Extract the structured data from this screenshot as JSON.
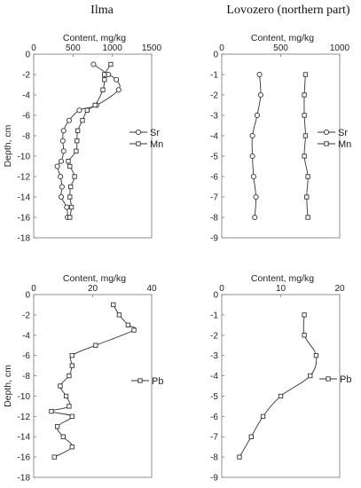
{
  "column_titles": [
    "Ilma",
    "Lovozero (northern part)"
  ],
  "chart_data": [
    {
      "type": "line",
      "panel": "Ilma",
      "xlabel": "Content, mg/kg",
      "ylabel": "Depth, cm",
      "xlim": [
        0,
        1500
      ],
      "xticks": [
        0,
        500,
        1000,
        1500
      ],
      "ylim": [
        -18,
        0
      ],
      "yticks": [
        0,
        -2,
        -4,
        -6,
        -8,
        -10,
        -12,
        -14,
        -16,
        -18
      ],
      "legend_position": "right",
      "series": [
        {
          "name": "Sr",
          "marker": "circle",
          "x": [
            760,
            950,
            1050,
            1080,
            800,
            580,
            450,
            380,
            370,
            380,
            350,
            300,
            340,
            360,
            350,
            420,
            430
          ],
          "y": [
            -1,
            -2,
            -2.5,
            -3.5,
            -5,
            -5.5,
            -6.5,
            -7.5,
            -8.5,
            -9.5,
            -10.5,
            -11,
            -12,
            -13,
            -14,
            -15,
            -16
          ]
        },
        {
          "name": "Mn",
          "marker": "square",
          "x": [
            980,
            900,
            900,
            880,
            780,
            680,
            620,
            560,
            550,
            540,
            440,
            460,
            520,
            470,
            460,
            480,
            460
          ],
          "y": [
            -1,
            -2,
            -2.5,
            -3.5,
            -5,
            -5.5,
            -6.5,
            -7.5,
            -8.5,
            -9.5,
            -10.5,
            -11,
            -12,
            -13,
            -14,
            -15,
            -16
          ]
        }
      ]
    },
    {
      "type": "line",
      "panel": "Lovozero (northern part)",
      "xlabel": "Content, mg/kg",
      "ylabel": "",
      "xlim": [
        0,
        1000
      ],
      "xticks": [
        0,
        500,
        1000
      ],
      "ylim": [
        -9,
        0
      ],
      "yticks": [
        0,
        -1,
        -2,
        -3,
        -4,
        -5,
        -6,
        -7,
        -8,
        -9
      ],
      "legend_position": "right",
      "series": [
        {
          "name": "Sr",
          "marker": "circle",
          "x": [
            320,
            330,
            300,
            260,
            260,
            270,
            290,
            280
          ],
          "y": [
            -1,
            -2,
            -3,
            -4,
            -5,
            -6,
            -7,
            -8
          ]
        },
        {
          "name": "Mn",
          "marker": "square",
          "x": [
            710,
            700,
            700,
            710,
            700,
            730,
            720,
            730
          ],
          "y": [
            -1,
            -2,
            -3,
            -4,
            -5,
            -6,
            -7,
            -8
          ]
        }
      ]
    },
    {
      "type": "line",
      "panel": "Ilma",
      "xlabel": "Content, mg/kg",
      "ylabel": "Depth, cm",
      "xlim": [
        0,
        40
      ],
      "xticks": [
        0,
        20,
        40
      ],
      "ylim": [
        -18,
        0
      ],
      "yticks": [
        0,
        -2,
        -4,
        -6,
        -8,
        -10,
        -12,
        -14,
        -16,
        -18
      ],
      "legend_position": "right",
      "series": [
        {
          "name": "Pb",
          "marker": "square",
          "x": [
            27,
            29,
            32,
            34,
            21,
            13,
            13,
            12,
            9,
            11,
            12,
            6,
            13,
            8,
            10,
            13,
            7
          ],
          "y": [
            -1,
            -2,
            -3,
            -3.5,
            -5,
            -6,
            -7,
            -8,
            -9,
            -10,
            -11,
            -11.5,
            -12,
            -13,
            -14,
            -15,
            -16
          ]
        }
      ]
    },
    {
      "type": "line",
      "panel": "Lovozero (northern part)",
      "xlabel": "Content, mg/kg",
      "ylabel": "",
      "xlim": [
        0,
        20
      ],
      "xticks": [
        0,
        10,
        20
      ],
      "ylim": [
        -9,
        0
      ],
      "yticks": [
        0,
        -1,
        -2,
        -3,
        -4,
        -5,
        -6,
        -7,
        -8,
        -9
      ],
      "legend_position": "right",
      "series": [
        {
          "name": "Pb",
          "marker": "square",
          "x": [
            14,
            14,
            16,
            15,
            10,
            7,
            5,
            3
          ],
          "y": [
            -1,
            -2,
            -3,
            -4,
            -5,
            -6,
            -7,
            -8
          ]
        }
      ]
    }
  ]
}
